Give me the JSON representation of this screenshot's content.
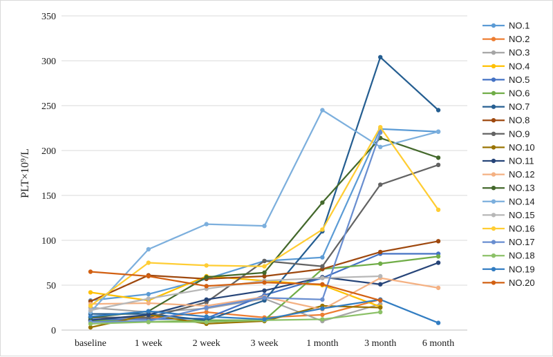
{
  "chart_data": {
    "type": "line",
    "title": "",
    "xlabel": "",
    "ylabel": "PLT×10⁹/L",
    "categories": [
      "baseline",
      "1 week",
      "2 week",
      "3 week",
      "1 month",
      "3 month",
      "6 month"
    ],
    "ylim": [
      0,
      350
    ],
    "yticks": [
      0,
      50,
      100,
      150,
      200,
      250,
      300,
      350
    ],
    "grid": "horizontal",
    "legend_position": "right",
    "series": [
      {
        "name": "NO.1",
        "color": "#5b9bd5",
        "values": [
          33,
          40,
          57,
          77,
          81,
          224,
          221
        ]
      },
      {
        "name": "NO.2",
        "color": "#ed7d31",
        "values": [
          10,
          13,
          20,
          14,
          17,
          34,
          null
        ]
      },
      {
        "name": "NO.3",
        "color": "#a5a5a5",
        "values": [
          25,
          20,
          24,
          35,
          10,
          29,
          null
        ]
      },
      {
        "name": "NO.4",
        "color": "#ffc000",
        "values": [
          42,
          33,
          60,
          55,
          50,
          26,
          null
        ]
      },
      {
        "name": "NO.5",
        "color": "#4472c4",
        "values": [
          12,
          12,
          13,
          39,
          58,
          85,
          85
        ]
      },
      {
        "name": "NO.6",
        "color": "#70ad47",
        "values": [
          11,
          9,
          11,
          11,
          68,
          74,
          82
        ]
      },
      {
        "name": "NO.7",
        "color": "#255e91",
        "values": [
          18,
          18,
          11,
          33,
          110,
          304,
          245
        ]
      },
      {
        "name": "NO.8",
        "color": "#9e480e",
        "values": [
          32,
          61,
          57,
          60,
          68,
          87,
          99
        ]
      },
      {
        "name": "NO.9",
        "color": "#636363",
        "values": [
          14,
          14,
          31,
          77,
          71,
          162,
          184
        ]
      },
      {
        "name": "NO.10",
        "color": "#997300",
        "values": [
          3,
          17,
          7,
          10,
          27,
          25,
          null
        ]
      },
      {
        "name": "NO.11",
        "color": "#264478",
        "values": [
          11,
          17,
          34,
          44,
          59,
          51,
          75
        ]
      },
      {
        "name": "NO.12",
        "color": "#f4b183",
        "values": [
          29,
          30,
          27,
          37,
          23,
          58,
          47
        ]
      },
      {
        "name": "NO.13",
        "color": "#43682b",
        "values": [
          14,
          21,
          59,
          64,
          142,
          214,
          192
        ]
      },
      {
        "name": "NO.14",
        "color": "#7cafdd",
        "values": [
          20,
          90,
          118,
          116,
          245,
          204,
          221
        ]
      },
      {
        "name": "NO.15",
        "color": "#b7b7b7",
        "values": [
          22,
          35,
          46,
          55,
          58,
          60,
          null
        ]
      },
      {
        "name": "NO.16",
        "color": "#ffcd33",
        "values": [
          27,
          75,
          72,
          71,
          112,
          226,
          134
        ]
      },
      {
        "name": "NO.17",
        "color": "#698ed0",
        "values": [
          9,
          10,
          25,
          36,
          34,
          220,
          null
        ]
      },
      {
        "name": "NO.18",
        "color": "#8cc168",
        "values": [
          7,
          9,
          9,
          11,
          12,
          20,
          null
        ]
      },
      {
        "name": "NO.19",
        "color": "#327dc2",
        "values": [
          15,
          21,
          15,
          12,
          24,
          34,
          8
        ]
      },
      {
        "name": "NO.20",
        "color": "#d26012",
        "values": [
          65,
          60,
          49,
          53,
          51,
          33,
          null
        ]
      }
    ]
  }
}
